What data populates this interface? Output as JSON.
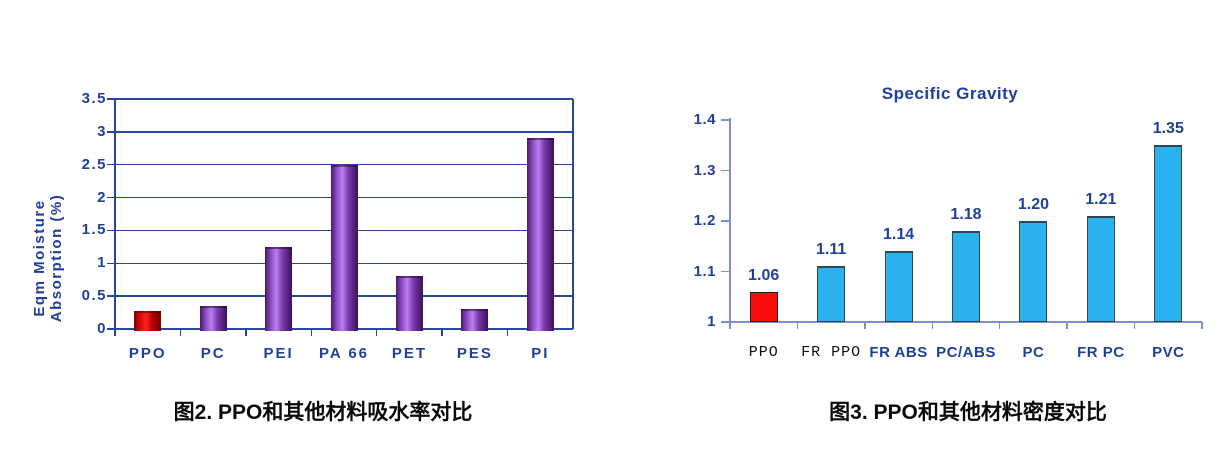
{
  "captions": {
    "fig2": "图2. PPO和其他材料吸水率对比",
    "fig3": "图3. PPO和其他材料密度对比"
  },
  "chart_data": [
    {
      "id": "moisture-absorption",
      "type": "bar",
      "title": "",
      "ylabel_line1": "Eqm Moisture",
      "ylabel_line2": "Absorption (%)",
      "categories": [
        "PPO",
        "PC",
        "PEI",
        "PA 66",
        "PET",
        "PES",
        "PI"
      ],
      "values": [
        0.27,
        0.35,
        1.25,
        2.5,
        0.8,
        0.3,
        2.9
      ],
      "ylim": [
        0,
        3.5
      ],
      "yticks": [
        3.5,
        3,
        2.5,
        2,
        1.5,
        1,
        0.5,
        0
      ],
      "ytick_labels": [
        "3.5",
        "3",
        "2.5",
        "2",
        "1.5",
        "1",
        "0.5",
        "0"
      ],
      "grid": true,
      "legend": "none",
      "highlight_index": 0,
      "highlight_color": "red-gradient",
      "bar_color": "purple-gradient"
    },
    {
      "id": "specific-gravity",
      "type": "bar",
      "title": "Specific Gravity",
      "categories": [
        "PPO",
        "FR PPO",
        "FR ABS",
        "PC/ABS",
        "PC",
        "FR PC",
        "PVC"
      ],
      "values": [
        1.06,
        1.11,
        1.14,
        1.18,
        1.2,
        1.21,
        1.35
      ],
      "value_labels": [
        "1.06",
        "1.11",
        "1.14",
        "1.18",
        "1.20",
        "1.21",
        "1.35"
      ],
      "ylim": [
        1,
        1.4
      ],
      "yticks": [
        1.4,
        1.3,
        1.2,
        1.1,
        1
      ],
      "ytick_labels": [
        "1.4",
        "1.3",
        "1.2",
        "1.1",
        "1"
      ],
      "grid": false,
      "legend": "none",
      "highlight_index": 0,
      "highlight_color": "red",
      "bar_color": "cyan",
      "category_label_styles": [
        "black",
        "black",
        "blue",
        "blue",
        "blue",
        "blue",
        "blue"
      ]
    }
  ],
  "colors": {
    "navy_text": "#21409c",
    "grid_line": "#27479e",
    "axis_light": "#7e90c6",
    "purple_edge": "#451a66",
    "purple_mid": "#8a48be",
    "purple_light": "#bd7ff0",
    "purple_mid2": "#7b3aad",
    "purple_edge2": "#3a1258",
    "red_edge": "#7c0000",
    "red_mid": "#d50808",
    "red_light": "#ff2222",
    "red_mid2": "#c10505",
    "red_edge2": "#6f0000",
    "cyan_fill": "#2ab2ef",
    "cyan_border": "#31454f",
    "red_fill": "#fb0a0a",
    "red_border": "#222222",
    "caption_color": "#0a0a0a",
    "black_label": "#111111"
  }
}
